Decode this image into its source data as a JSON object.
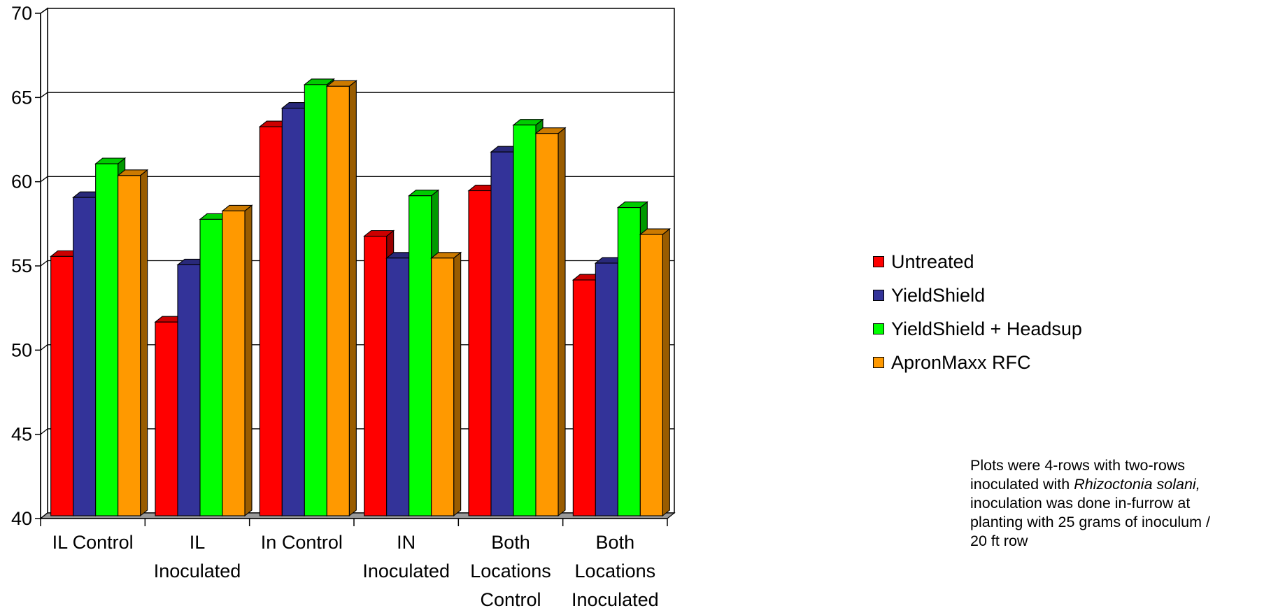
{
  "chart_data": {
    "type": "bar",
    "categories": [
      [
        "IL Control"
      ],
      [
        "IL",
        "Inoculated"
      ],
      [
        "In Control"
      ],
      [
        "IN",
        "Inoculated"
      ],
      [
        "Both",
        "Locations",
        "Control"
      ],
      [
        "Both",
        "Locations",
        "Inoculated"
      ]
    ],
    "series": [
      {
        "name": "Untreated",
        "color": "#ff0000",
        "values": [
          55.4,
          51.5,
          63.1,
          56.6,
          59.3,
          54.0
        ]
      },
      {
        "name": "YieldShield",
        "color": "#333399",
        "values": [
          58.9,
          54.9,
          64.2,
          55.3,
          61.6,
          55.0
        ]
      },
      {
        "name": "YieldShield + Headsup",
        "color": "#00ff00",
        "values": [
          60.9,
          57.6,
          65.6,
          59.0,
          63.2,
          58.3
        ]
      },
      {
        "name": "ApronMaxx RFC",
        "color": "#ff9900",
        "values": [
          60.2,
          58.1,
          65.5,
          55.3,
          62.7,
          56.7
        ]
      }
    ],
    "ylim": [
      40,
      70
    ],
    "yticks": [
      40,
      45,
      50,
      55,
      60,
      65,
      70
    ],
    "grid": true,
    "legend_position": "right",
    "title": "",
    "xlabel": "",
    "ylabel": "",
    "note": {
      "line1": "Plots were 4-rows with two-rows",
      "line2_before": "inoculated with ",
      "line2_italic": "Rhizoctonia solani,",
      "line3": "inoculation was done in-furrow at",
      "line4": "planting with 25 grams of inoculum /",
      "line5": "20 ft row"
    }
  }
}
